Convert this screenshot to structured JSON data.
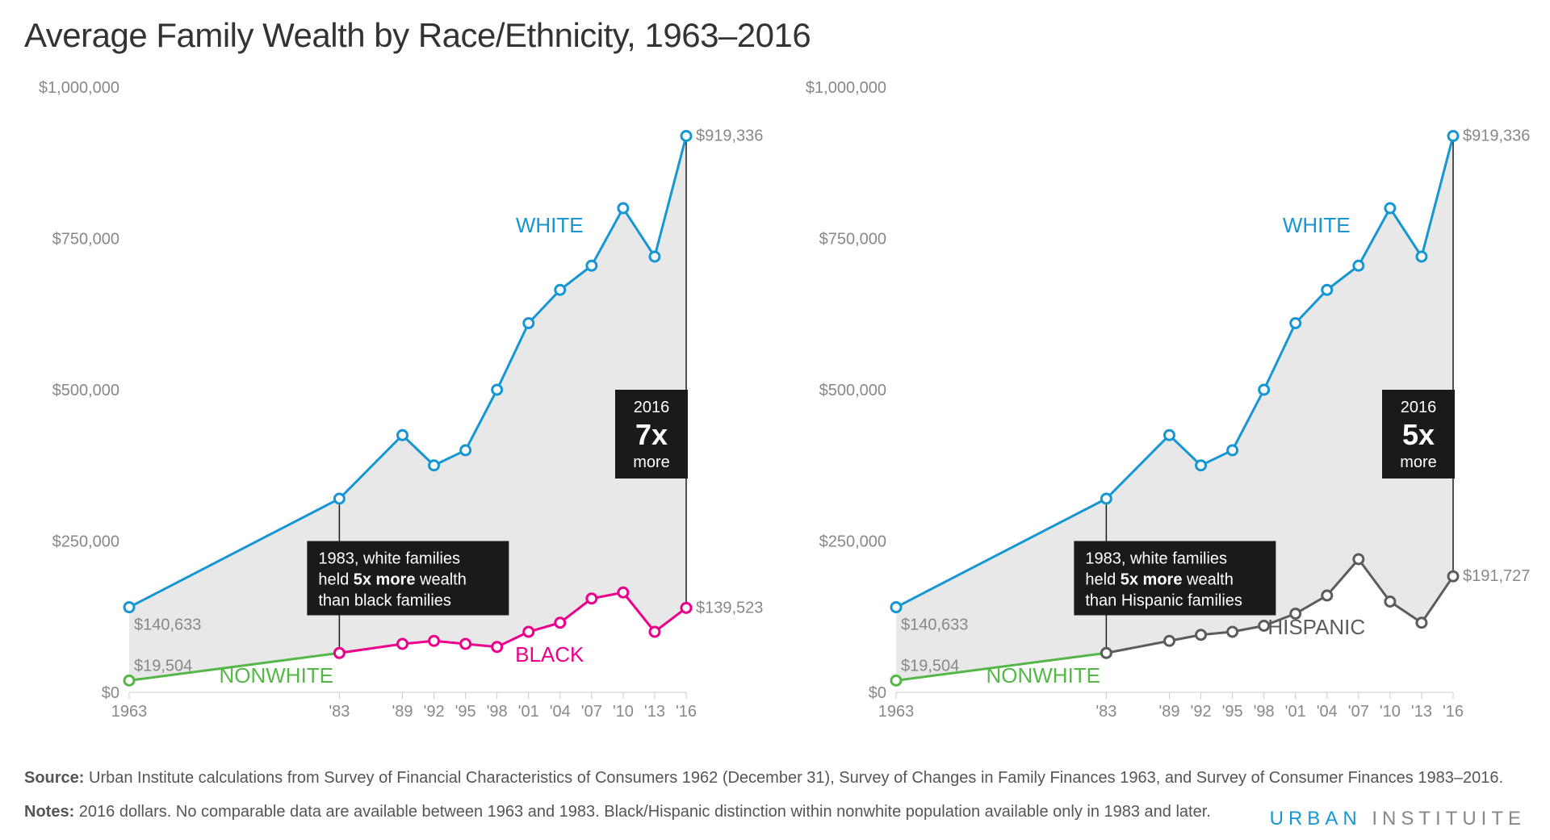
{
  "title": "Average Family Wealth by Race/Ethnicity, 1963–2016",
  "source_label": "Source:",
  "source_text": "Urban Institute calculations from Survey of Financial Characteristics of Consumers 1962 (December 31), Survey of Changes in Family Finances 1963, and Survey of Consumer Finances 1983–2016.",
  "notes_label": "Notes:",
  "notes_text": "2016 dollars. No comparable data are available between 1963 and 1983. Black/Hispanic distinction within nonwhite population available only in 1983 and later.",
  "brand_a": "URBAN",
  "brand_b": "INSTITUITE",
  "chart_common": {
    "ylim": [
      0,
      1000000
    ],
    "yticks": [
      0,
      250000,
      500000,
      750000,
      1000000
    ],
    "ytick_labels": [
      "$0",
      "$250,000",
      "$500,000",
      "$750,000",
      "$1,000,000"
    ],
    "xlim": [
      1963,
      2016
    ],
    "xticks": [
      1963,
      1983,
      1989,
      1992,
      1995,
      1998,
      2001,
      2004,
      2007,
      2010,
      2013,
      2016
    ],
    "xtick_labels": [
      "1963",
      "'83",
      "'89",
      "'92",
      "'95",
      "'98",
      "'01",
      "'04",
      "'07",
      "'10",
      "'13",
      "'16"
    ],
    "plot_bg": "#ffffff",
    "area_fill": "#e8e8e8",
    "grid_color": "#d0d0d0",
    "axis_color": "#cccccc",
    "tick_font_color": "#888888",
    "title_fontsize": 42,
    "label_fontsize": 20,
    "line_width": 3,
    "marker_radius": 6,
    "marker_stroke_width": 3
  },
  "white_series": {
    "label": "WHITE",
    "color": "#1696d2",
    "years": [
      1963,
      1983,
      1989,
      1992,
      1995,
      1998,
      2001,
      2004,
      2007,
      2010,
      2013,
      2016
    ],
    "values": [
      140633,
      320000,
      425000,
      375000,
      400000,
      500000,
      610000,
      665000,
      705000,
      800000,
      720000,
      919336
    ],
    "start_label": "$140,633",
    "end_label": "$919,336"
  },
  "nonwhite_series": {
    "label": "NONWHITE",
    "color": "#55b748",
    "years": [
      1963,
      1983
    ],
    "values": [
      19504,
      65000
    ],
    "start_label": "$19,504"
  },
  "panels": [
    {
      "id": "left",
      "comparison_series": {
        "label": "BLACK",
        "color": "#ec008b",
        "years": [
          1983,
          1989,
          1992,
          1995,
          1998,
          2001,
          2004,
          2007,
          2010,
          2013,
          2016
        ],
        "values": [
          65000,
          80000,
          85000,
          80000,
          75000,
          100000,
          115000,
          155000,
          165000,
          100000,
          139523
        ],
        "end_label": "$139,523"
      },
      "callout_1983": {
        "line1": "1983, white families",
        "line2_a": "held ",
        "line2_b": "5x more",
        "line2_c": " wealth",
        "line3": "than black families"
      },
      "callout_2016": {
        "line1": "2016",
        "line2": "7x",
        "line3": "more"
      }
    },
    {
      "id": "right",
      "comparison_series": {
        "label": "HISPANIC",
        "color": "#5c5c5c",
        "years": [
          1983,
          1989,
          1992,
          1995,
          1998,
          2001,
          2004,
          2007,
          2010,
          2013,
          2016
        ],
        "values": [
          65000,
          85000,
          95000,
          100000,
          110000,
          130000,
          160000,
          220000,
          150000,
          115000,
          191727
        ],
        "end_label": "$191,727"
      },
      "callout_1983": {
        "line1": "1983, white families",
        "line2_a": "held ",
        "line2_b": "5x more",
        "line2_c": " wealth",
        "line3": "than Hispanic families"
      },
      "callout_2016": {
        "line1": "2016",
        "line2": "5x",
        "line3": "more"
      }
    }
  ]
}
